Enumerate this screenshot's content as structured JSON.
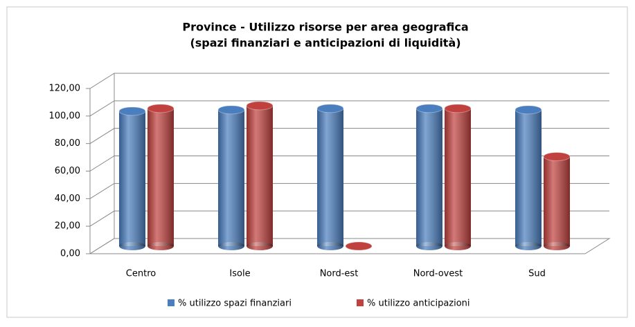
{
  "chart_data": {
    "type": "bar3d",
    "title": "Province - Utilizzo risorse per area geografica",
    "subtitle": "(spazi finanziari e anticipazioni di liquidità)",
    "categories": [
      "Centro",
      "Isole",
      "Nord-est",
      "Nord-ovest",
      "Sud"
    ],
    "series": [
      {
        "name": "% utilizzo spazi finanziari",
        "color": "#4a7ebf",
        "values": [
          98,
          99,
          100,
          100,
          99
        ]
      },
      {
        "name": "% utilizzo anticipazioni",
        "color": "#c0413e",
        "values": [
          100,
          102,
          0,
          100,
          65
        ]
      }
    ],
    "ylim": [
      0,
      120
    ],
    "yticks": [
      {
        "value": 0,
        "label": "0,00"
      },
      {
        "value": 20,
        "label": "20,00"
      },
      {
        "value": 40,
        "label": "40,00"
      },
      {
        "value": 60,
        "label": "60,00"
      },
      {
        "value": 80,
        "label": "80,00"
      },
      {
        "value": 100,
        "label": "100,00"
      },
      {
        "value": 120,
        "label": "120,00"
      }
    ],
    "grid": true,
    "legend": "bottom"
  }
}
